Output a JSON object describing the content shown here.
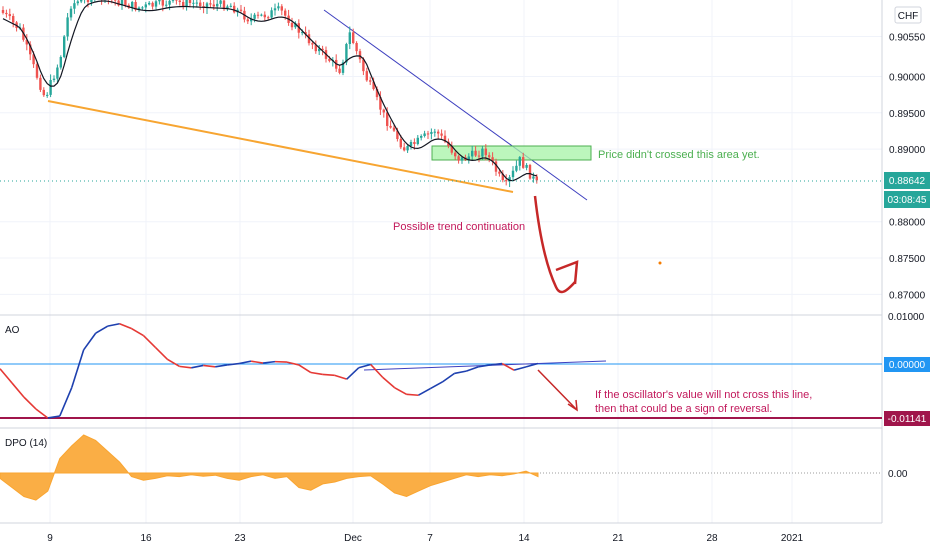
{
  "chart_data": {
    "type": "candlestick",
    "currency_label": "CHF",
    "colors": {
      "up": "#26a69a",
      "down": "#ef5350",
      "ma": "#131722",
      "support": "#f7a531",
      "resistance": "#3d3fbf",
      "zone_fill": "#a5f3a5",
      "zone_stroke": "#4caf50",
      "annotation_red": "#c2185b",
      "arrow": "#c62828",
      "ao_up": "#1e40af",
      "ao_down": "#e53935",
      "ao_ref": "#2196f3",
      "ao_low_line": "#a0154b",
      "dpo_fill": "#f9a531"
    },
    "price_axis": {
      "ticks": [
        "0.90550",
        "0.90000",
        "0.89500",
        "0.89000",
        "0.88000",
        "0.87500",
        "0.87000"
      ],
      "last_price": "0.88642",
      "countdown": "03:08:45"
    },
    "time_axis": {
      "ticks": [
        "9",
        "16",
        "23",
        "Dec",
        "7",
        "14",
        "21",
        "28",
        "2021"
      ]
    },
    "annotations": {
      "zone_note": "Price didn't crossed this area yet.",
      "trend_note": "Possible trend continuation",
      "osc_note_1": "If the oscillator's value will not cross this line,",
      "osc_note_2": "then that could be a sign of reversal."
    },
    "ao": {
      "label": "AO",
      "ticks": [
        "0.01000",
        "0.00000",
        "-0.01141"
      ],
      "zero_tag": "0.00000",
      "low_tag": "-0.01141",
      "values": [
        -0.001,
        -0.004,
        -0.007,
        -0.0095,
        -0.0114,
        -0.011,
        -0.005,
        0.003,
        0.0065,
        0.008,
        0.0085,
        0.0075,
        0.006,
        0.0035,
        0.001,
        -0.0005,
        -0.0008,
        -0.0003,
        -0.0006,
        -0.0002,
        0.0001,
        0.0006,
        0.0002,
        0.0005,
        0.0004,
        -0.0002,
        -0.0018,
        -0.0022,
        -0.0024,
        -0.0032,
        -0.0008,
        -0.0001,
        -0.0028,
        -0.005,
        -0.0064,
        -0.0066,
        -0.0052,
        -0.0038,
        -0.002,
        -0.0015,
        -0.0006,
        -0.0002,
        0.0001,
        -0.0013,
        -0.0006,
        0.0001
      ]
    },
    "dpo": {
      "label": "DPO (14)",
      "tick": "0.00",
      "values": [
        -0.003,
        -0.008,
        -0.013,
        -0.015,
        -0.01,
        0.008,
        0.015,
        0.021,
        0.018,
        0.012,
        0.006,
        -0.002,
        -0.004,
        -0.003,
        -0.0015,
        -0.002,
        -0.001,
        -0.0018,
        -0.0012,
        -0.003,
        -0.004,
        -0.002,
        -0.001,
        -0.003,
        -0.002,
        -0.008,
        -0.0095,
        -0.006,
        -0.005,
        -0.003,
        -0.002,
        -0.0015,
        -0.006,
        -0.011,
        -0.013,
        -0.01,
        -0.007,
        -0.005,
        -0.003,
        -0.001,
        -0.002,
        -0.001,
        -0.0015,
        -0.0005,
        0.001,
        -0.002
      ]
    }
  }
}
